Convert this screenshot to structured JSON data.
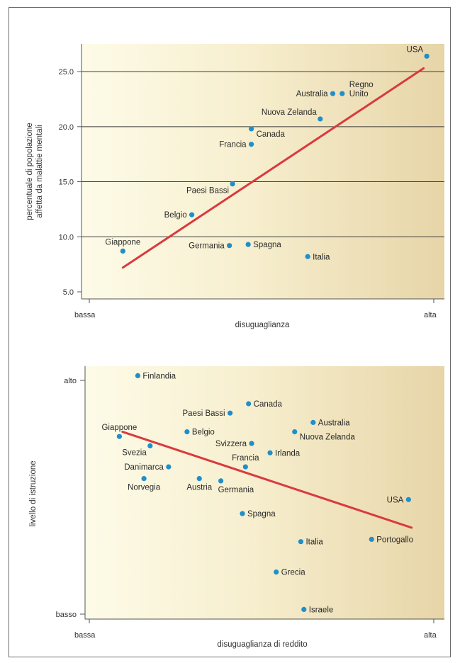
{
  "chart_data": [
    {
      "type": "scatter",
      "xlabel": "disuguaglianza",
      "ylabel_line1": "percentuale di popolazione",
      "ylabel_line2": "affetta da malattie mentali",
      "x_tick_low": "bassa",
      "x_tick_high": "alta",
      "xlim": [
        0,
        100
      ],
      "ylim": [
        5,
        27
      ],
      "y_ticks": [
        "5.0",
        "10.0",
        "15.0",
        "20.0",
        "25.0"
      ],
      "y_tick_values": [
        5,
        10,
        15,
        20,
        25
      ],
      "grid": "horizontal",
      "trendline": [
        [
          8,
          7.2
        ],
        [
          104,
          25.3
        ]
      ],
      "trend_color": "#d93a3f",
      "point_color": "#1f8fc9",
      "points": [
        {
          "name": "USA",
          "x": 105,
          "y": 26.4,
          "label": [
            "USA"
          ],
          "anchor": "left-up"
        },
        {
          "name": "Regno Unito",
          "x": 78,
          "y": 23.0,
          "label": [
            "Regno",
            "Unito"
          ],
          "anchor": "right-stack"
        },
        {
          "name": "Australia",
          "x": 75,
          "y": 23.0,
          "label": [
            "Australia"
          ],
          "anchor": "left"
        },
        {
          "name": "Nuova Zelanda",
          "x": 71,
          "y": 20.7,
          "label": [
            "Nuova Zelanda"
          ],
          "anchor": "left-up"
        },
        {
          "name": "Canada",
          "x": 49,
          "y": 19.8,
          "label": [
            "Canada"
          ],
          "anchor": "right-down"
        },
        {
          "name": "Francia",
          "x": 49,
          "y": 18.4,
          "label": [
            "Francia"
          ],
          "anchor": "left"
        },
        {
          "name": "Paesi Bassi",
          "x": 43,
          "y": 14.8,
          "label": [
            "Paesi Bassi"
          ],
          "anchor": "left-down"
        },
        {
          "name": "Belgio",
          "x": 30,
          "y": 12.0,
          "label": [
            "Belgio"
          ],
          "anchor": "left"
        },
        {
          "name": "Giappone",
          "x": 8,
          "y": 8.7,
          "label": [
            "Giappone"
          ],
          "anchor": "above"
        },
        {
          "name": "Germania",
          "x": 42,
          "y": 9.2,
          "label": [
            "Germania"
          ],
          "anchor": "left"
        },
        {
          "name": "Spagna",
          "x": 48,
          "y": 9.3,
          "label": [
            "Spagna"
          ],
          "anchor": "right"
        },
        {
          "name": "Italia",
          "x": 67,
          "y": 8.2,
          "label": [
            "Italia"
          ],
          "anchor": "right"
        }
      ]
    },
    {
      "type": "scatter",
      "xlabel": "disuguaglianza di reddito",
      "ylabel": "livello di istruzione",
      "x_tick_low": "bassa",
      "x_tick_high": "alta",
      "y_tick_high": "alto",
      "y_tick_low": "basso",
      "xlim": [
        0,
        100
      ],
      "ylim": [
        0,
        100
      ],
      "grid": "none",
      "trendline": [
        [
          8,
          78
        ],
        [
          102,
          37
        ]
      ],
      "trend_color": "#d93a3f",
      "point_color": "#1f8fc9",
      "points": [
        {
          "name": "Finlandia",
          "x": 13,
          "y": 102,
          "label": [
            "Finlandia"
          ],
          "anchor": "right"
        },
        {
          "name": "Canada",
          "x": 49,
          "y": 90,
          "label": [
            "Canada"
          ],
          "anchor": "right"
        },
        {
          "name": "Paesi Bassi",
          "x": 43,
          "y": 86,
          "label": [
            "Paesi Bassi"
          ],
          "anchor": "left"
        },
        {
          "name": "Australia",
          "x": 70,
          "y": 82,
          "label": [
            "Australia"
          ],
          "anchor": "right"
        },
        {
          "name": "Nuova Zelanda",
          "x": 64,
          "y": 78,
          "label": [
            "Nuova Zelanda"
          ],
          "anchor": "right-down"
        },
        {
          "name": "Giappone",
          "x": 7,
          "y": 76,
          "label": [
            "Giappone"
          ],
          "anchor": "above"
        },
        {
          "name": "Belgio",
          "x": 29,
          "y": 78,
          "label": [
            "Belgio"
          ],
          "anchor": "right"
        },
        {
          "name": "Svizzera",
          "x": 50,
          "y": 73,
          "label": [
            "Svizzera"
          ],
          "anchor": "left"
        },
        {
          "name": "Svezia",
          "x": 17,
          "y": 72,
          "label": [
            "Svezia"
          ],
          "anchor": "left-down"
        },
        {
          "name": "Irlanda",
          "x": 56,
          "y": 69,
          "label": [
            "Irlanda"
          ],
          "anchor": "right"
        },
        {
          "name": "Francia",
          "x": 48,
          "y": 63,
          "label": [
            "Francia"
          ],
          "anchor": "above"
        },
        {
          "name": "Danimarca",
          "x": 23,
          "y": 63,
          "label": [
            "Danimarca"
          ],
          "anchor": "left"
        },
        {
          "name": "Norvegia",
          "x": 15,
          "y": 58,
          "label": [
            "Norvegia"
          ],
          "anchor": "below"
        },
        {
          "name": "Austria",
          "x": 33,
          "y": 58,
          "label": [
            "Austria"
          ],
          "anchor": "below"
        },
        {
          "name": "Germania",
          "x": 40,
          "y": 57,
          "label": [
            "Germania"
          ],
          "anchor": "below-right"
        },
        {
          "name": "USA",
          "x": 101,
          "y": 49,
          "label": [
            "USA"
          ],
          "anchor": "left"
        },
        {
          "name": "Spagna",
          "x": 47,
          "y": 43,
          "label": [
            "Spagna"
          ],
          "anchor": "right"
        },
        {
          "name": "Italia",
          "x": 66,
          "y": 31,
          "label": [
            "Italia"
          ],
          "anchor": "right"
        },
        {
          "name": "Portogallo",
          "x": 89,
          "y": 32,
          "label": [
            "Portogallo"
          ],
          "anchor": "right"
        },
        {
          "name": "Grecia",
          "x": 58,
          "y": 18,
          "label": [
            "Grecia"
          ],
          "anchor": "right"
        },
        {
          "name": "Israele",
          "x": 67,
          "y": 2,
          "label": [
            "Israele"
          ],
          "anchor": "right"
        }
      ]
    }
  ]
}
